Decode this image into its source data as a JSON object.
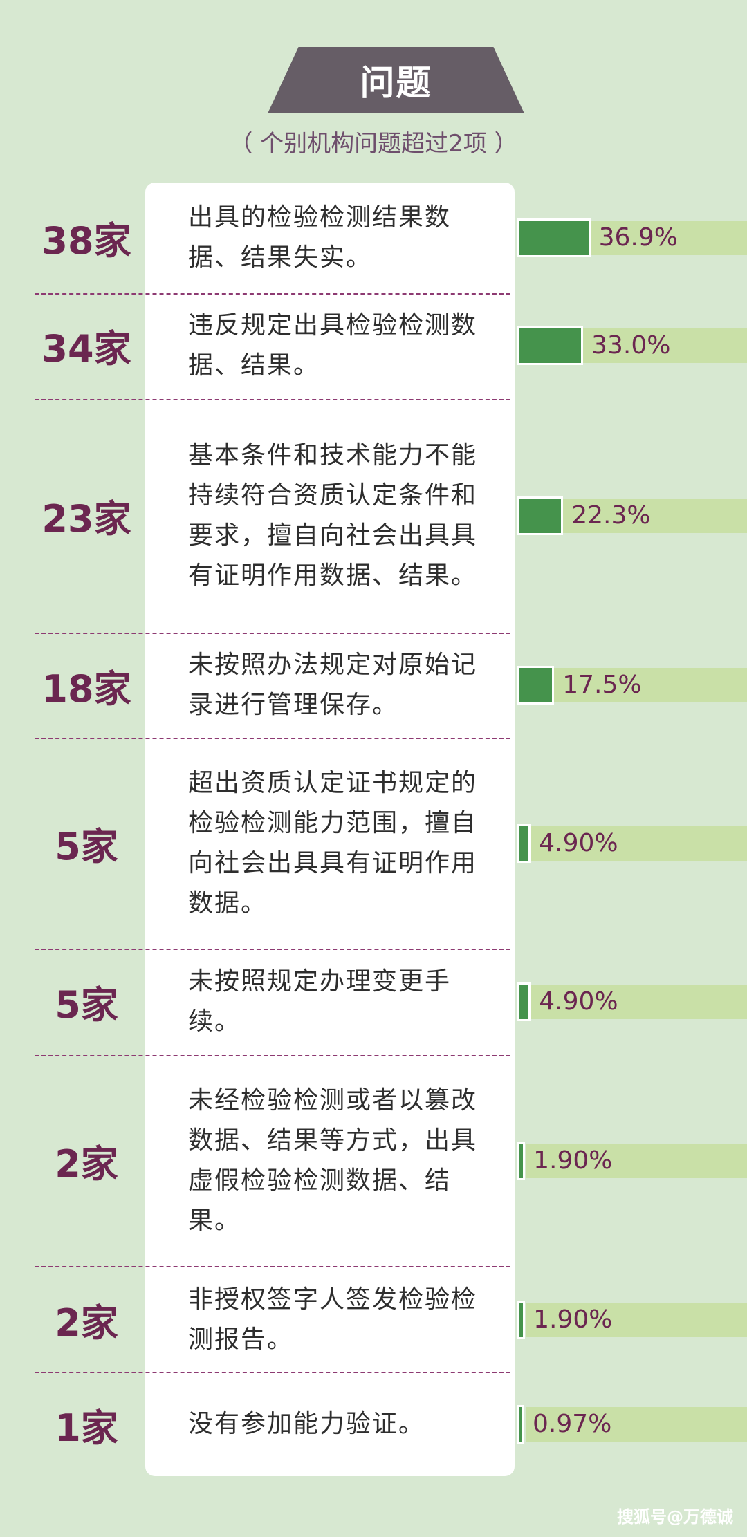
{
  "header": {
    "title": "问题",
    "subtitle": "（ 个别机构问题超过2项 ）"
  },
  "chart_data": {
    "type": "bar",
    "orientation": "horizontal",
    "xlim": [
      0,
      100
    ],
    "categories": [
      "出具的检验检测结果数据、结果失实。",
      "违反规定出具检验检测数据、结果。",
      "基本条件和技术能力不能持续符合资质认定条件和要求，擅自向社会出具具有证明作用数据、结果。",
      "未按照办法规定对原始记录进行管理保存。",
      "超出资质认定证书规定的检验检测能力范围，擅自向社会出具具有证明作用数据。",
      "未按照规定办理变更手续。",
      "未经检验检测或者以篡改数据、结果等方式，出具虚假检验检测数据、结果。",
      "非授权签字人签发检验检测报告。",
      "没有参加能力验证。"
    ],
    "counts": [
      "38家",
      "34家",
      "23家",
      "18家",
      "5家",
      "5家",
      "2家",
      "2家",
      "1家"
    ],
    "values": [
      36.9,
      33.0,
      22.3,
      17.5,
      4.9,
      4.9,
      1.9,
      1.9,
      0.97
    ],
    "value_labels": [
      "36.9%",
      "33.0%",
      "22.3%",
      "17.5%",
      "4.90%",
      "4.90%",
      "1.90%",
      "1.90%",
      "0.97%"
    ],
    "colors": {
      "bar": "#45934c",
      "band": "#c9e0a7",
      "count": "#6b2650",
      "separator": "#8d3a72"
    }
  },
  "footer": {
    "watermark": "搜狐号@万德诚"
  }
}
